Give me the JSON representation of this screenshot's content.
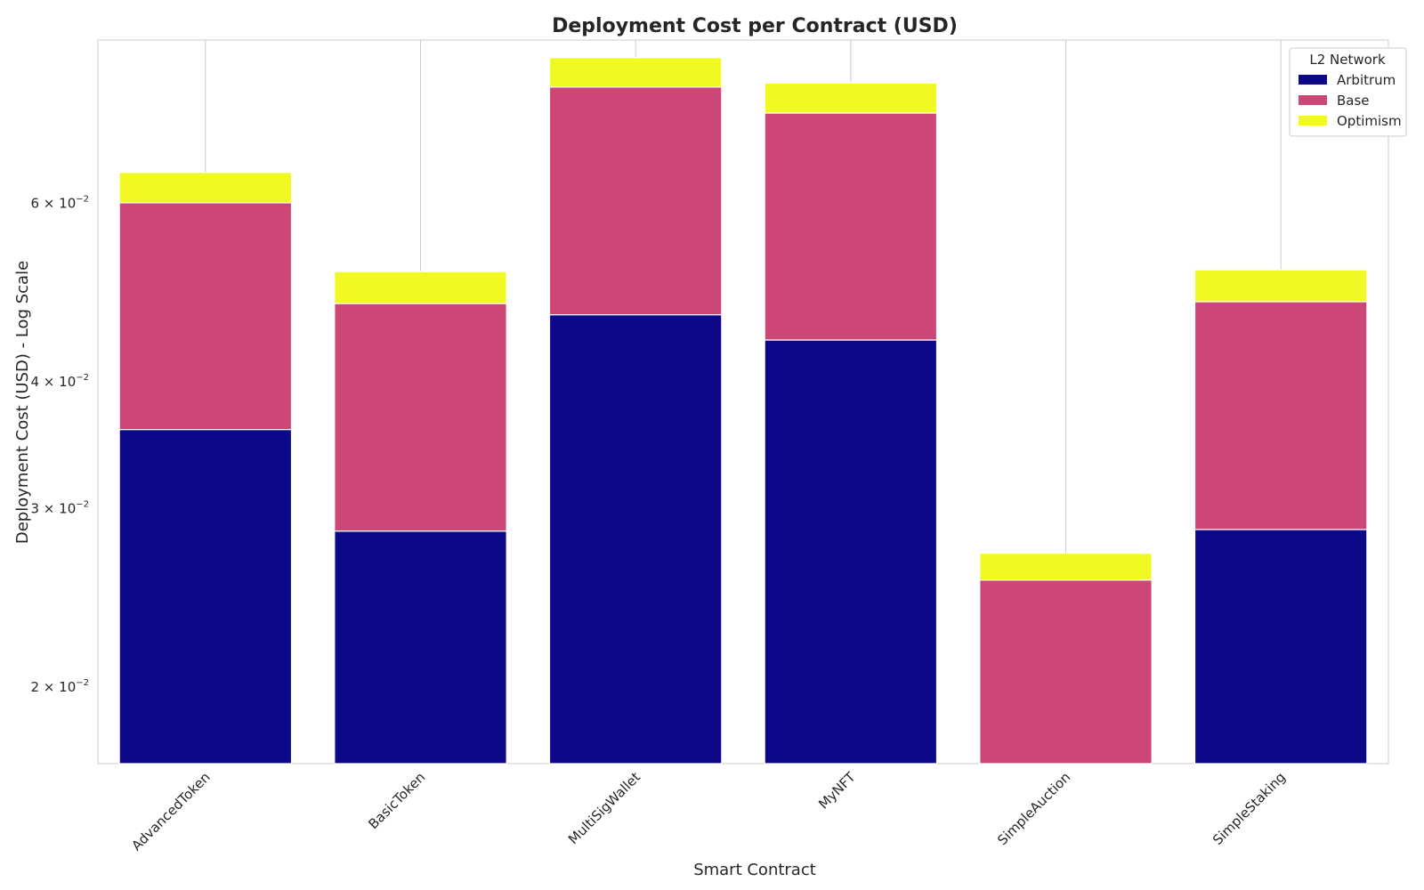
{
  "chart_data": {
    "type": "bar",
    "stacked": true,
    "title": "Deployment Cost per Contract (USD)",
    "xlabel": "Smart Contract",
    "ylabel": "Deployment Cost (USD) - Log Scale",
    "yscale": "log",
    "ylim": [
      0.0168,
      0.087
    ],
    "yticks": [
      {
        "value": 0.02,
        "mantissa": "2",
        "exp": "−2"
      },
      {
        "value": 0.03,
        "mantissa": "3",
        "exp": "−2"
      },
      {
        "value": 0.04,
        "mantissa": "4",
        "exp": "−2"
      },
      {
        "value": 0.06,
        "mantissa": "6",
        "exp": "−2"
      }
    ],
    "grid": true,
    "legend_title": "L2 Network",
    "legend_position": "top-right",
    "categories": [
      "AdvancedToken",
      "BasicToken",
      "MultiSigWallet",
      "MyNFT",
      "SimpleAuction",
      "SimpleStaking"
    ],
    "series": [
      {
        "name": "Arbitrum",
        "color": "#0d0887",
        "values": [
          0.0359,
          0.0285,
          0.0466,
          0.044,
          0.0,
          0.0286
        ]
      },
      {
        "name": "Base",
        "color": "#cc4778",
        "values": [
          0.0242,
          0.0193,
          0.0316,
          0.0297,
          0.0255,
          0.0194
        ]
      },
      {
        "name": "Optimism",
        "color": "#f0f921",
        "values": [
          0.0043,
          0.0036,
          0.0054,
          0.0052,
          0.0016,
          0.0036
        ]
      }
    ]
  }
}
